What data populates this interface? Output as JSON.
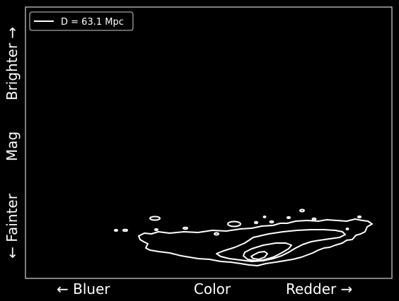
{
  "chart_data": {
    "type": "contour",
    "title": "",
    "xlabel": {
      "left": "← Bluer",
      "center": "Color",
      "right": "Redder →"
    },
    "ylabel": {
      "bottom": "← Fainter",
      "center": "Mag",
      "top": "Brighter →"
    },
    "legend": {
      "placement": "top-left",
      "entries": [
        {
          "label": "D = 63.1 Mpc",
          "color": "#ffffff"
        }
      ]
    },
    "grid": false,
    "ticks": false,
    "colors": {
      "background": "#000000",
      "foreground": "#ffffff"
    }
  }
}
